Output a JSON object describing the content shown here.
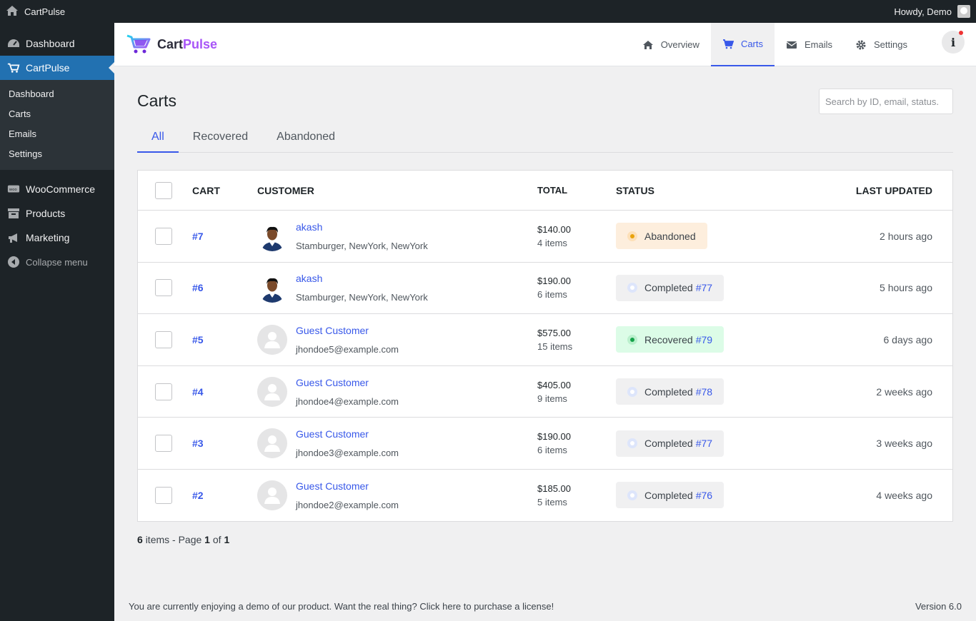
{
  "adminbar": {
    "site_name": "CartPulse",
    "howdy": "Howdy, Demo"
  },
  "sidebar": {
    "items": [
      {
        "label": "Dashboard",
        "icon": "dashboard-icon"
      },
      {
        "label": "CartPulse",
        "icon": "cart-icon",
        "active": true
      },
      {
        "label": "WooCommerce",
        "icon": "woo-icon"
      },
      {
        "label": "Products",
        "icon": "archive-icon"
      },
      {
        "label": "Marketing",
        "icon": "megaphone-icon"
      }
    ],
    "submenu": [
      "Dashboard",
      "Carts",
      "Emails",
      "Settings"
    ],
    "collapse": "Collapse menu"
  },
  "brand": {
    "part1": "Cart",
    "part2": "Pulse"
  },
  "topnav": [
    {
      "label": "Overview",
      "icon": "home-icon"
    },
    {
      "label": "Carts",
      "icon": "cart-icon",
      "active": true
    },
    {
      "label": "Emails",
      "icon": "envelope-icon"
    },
    {
      "label": "Settings",
      "icon": "gear-icon"
    }
  ],
  "info_glyph": "i",
  "page": {
    "title": "Carts",
    "search_placeholder": "Search by ID, email, status.",
    "tabs": [
      "All",
      "Recovered",
      "Abandoned"
    ],
    "active_tab": "All"
  },
  "table": {
    "headers": {
      "cart": "CART",
      "customer": "CUSTOMER",
      "total": "TOTAL",
      "status": "STATUS",
      "updated": "LAST UPDATED"
    },
    "rows": [
      {
        "cart": "#7",
        "name": "akash",
        "sub": "Stamburger, NewYork, NewYork",
        "avatar": "photo",
        "total": "$140.00",
        "items": "4 items",
        "status": "Abandoned",
        "status_type": "abandoned",
        "order": "",
        "updated": "2 hours ago"
      },
      {
        "cart": "#6",
        "name": "akash",
        "sub": "Stamburger, NewYork, NewYork",
        "avatar": "photo",
        "total": "$190.00",
        "items": "6 items",
        "status": "Completed",
        "status_type": "completed",
        "order": "#77",
        "updated": "5 hours ago"
      },
      {
        "cart": "#5",
        "name": "Guest Customer",
        "sub": "jhondoe5@example.com",
        "avatar": "guest",
        "total": "$575.00",
        "items": "15 items",
        "status": "Recovered",
        "status_type": "recovered",
        "order": "#79",
        "updated": "6 days ago"
      },
      {
        "cart": "#4",
        "name": "Guest Customer",
        "sub": "jhondoe4@example.com",
        "avatar": "guest",
        "total": "$405.00",
        "items": "9 items",
        "status": "Completed",
        "status_type": "completed",
        "order": "#78",
        "updated": "2 weeks ago"
      },
      {
        "cart": "#3",
        "name": "Guest Customer",
        "sub": "jhondoe3@example.com",
        "avatar": "guest",
        "total": "$190.00",
        "items": "6 items",
        "status": "Completed",
        "status_type": "completed",
        "order": "#77",
        "updated": "3 weeks ago"
      },
      {
        "cart": "#2",
        "name": "Guest Customer",
        "sub": "jhondoe2@example.com",
        "avatar": "guest",
        "total": "$185.00",
        "items": "5 items",
        "status": "Completed",
        "status_type": "completed",
        "order": "#76",
        "updated": "4 weeks ago"
      }
    ]
  },
  "pager": {
    "count": "6",
    "items_text": "items - Page",
    "page": "1",
    "of": "of",
    "total_pages": "1"
  },
  "footer": {
    "demo_text": "You are currently enjoying a demo of our product. Want the real thing? Click here to purchase a license!",
    "version": "Version 6.0"
  },
  "colors": {
    "accent": "#3858e9",
    "wp_blue": "#2271b1",
    "admin_dark": "#1d2327",
    "brand_purple": "#a855f7"
  }
}
